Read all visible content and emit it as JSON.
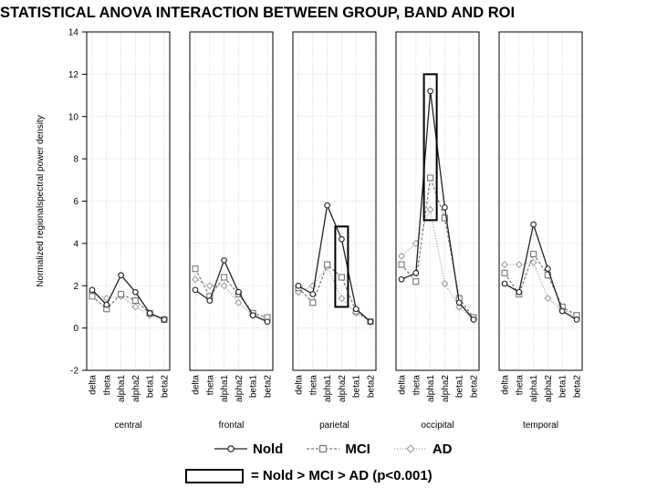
{
  "chart_data": {
    "type": "line",
    "title": "STATISTICAL ANOVA INTERACTION BETWEEN GROUP, BAND AND ROI",
    "ylabel": "Normalized regionalspectral power density",
    "xlabel": "",
    "ylim": [
      -2,
      14
    ],
    "yticks": [
      "-2",
      "0",
      "2",
      "4",
      "6",
      "8",
      "10",
      "12",
      "14"
    ],
    "grid": true,
    "categories": [
      "delta",
      "theta",
      "alpha1",
      "alpha2",
      "beta1",
      "beta2"
    ],
    "panels": [
      {
        "name": "central",
        "series": [
          {
            "name": "Nold",
            "values": [
              1.8,
              1.1,
              2.5,
              1.7,
              0.7,
              0.4
            ]
          },
          {
            "name": "MCI",
            "values": [
              1.5,
              0.9,
              1.6,
              1.3,
              0.7,
              0.4
            ]
          },
          {
            "name": "AD",
            "values": [
              1.7,
              1.4,
              1.5,
              1.0,
              0.6,
              0.4
            ]
          }
        ]
      },
      {
        "name": "frontal",
        "series": [
          {
            "name": "Nold",
            "values": [
              1.8,
              1.3,
              3.2,
              1.7,
              0.6,
              0.3
            ]
          },
          {
            "name": "MCI",
            "values": [
              2.8,
              1.5,
              2.4,
              1.6,
              0.7,
              0.5
            ]
          },
          {
            "name": "AD",
            "values": [
              2.3,
              2.0,
              2.0,
              1.2,
              0.6,
              0.4
            ]
          }
        ]
      },
      {
        "name": "parietal",
        "series": [
          {
            "name": "Nold",
            "values": [
              2.0,
              1.6,
              5.8,
              4.2,
              0.9,
              0.3
            ]
          },
          {
            "name": "MCI",
            "values": [
              1.9,
              1.2,
              3.0,
              2.4,
              0.8,
              0.3
            ]
          },
          {
            "name": "AD",
            "values": [
              1.7,
              2.0,
              2.9,
              1.4,
              0.7,
              0.3
            ]
          }
        ]
      },
      {
        "name": "occipital",
        "series": [
          {
            "name": "Nold",
            "values": [
              2.3,
              2.6,
              11.2,
              5.7,
              1.2,
              0.4
            ]
          },
          {
            "name": "MCI",
            "values": [
              3.0,
              2.2,
              7.1,
              5.2,
              1.4,
              0.5
            ]
          },
          {
            "name": "AD",
            "values": [
              3.4,
              4.0,
              5.6,
              2.1,
              1.0,
              0.4
            ]
          }
        ]
      },
      {
        "name": "temporal",
        "series": [
          {
            "name": "Nold",
            "values": [
              2.1,
              1.7,
              4.9,
              2.8,
              0.8,
              0.4
            ]
          },
          {
            "name": "MCI",
            "values": [
              2.6,
              1.6,
              3.5,
              2.5,
              1.0,
              0.6
            ]
          },
          {
            "name": "AD",
            "values": [
              3.0,
              3.0,
              3.1,
              1.4,
              0.9,
              0.5
            ]
          }
        ]
      }
    ],
    "highlights": [
      {
        "panel": "parietal",
        "category": "alpha2",
        "y_range": [
          1.0,
          4.8
        ]
      },
      {
        "panel": "occipital",
        "category": "alpha1",
        "y_range": [
          5.1,
          12.0
        ]
      }
    ],
    "legend": {
      "placement": "bottom",
      "entries": [
        "Nold",
        "MCI",
        "AD"
      ],
      "box_label": "= Nold > MCI > AD (p<0.001)"
    },
    "colors": {
      "Nold": "#222222",
      "MCI": "#777777",
      "AD": "#a0a0a0",
      "grid": "#cfcfcf",
      "frame": "#000000"
    }
  }
}
